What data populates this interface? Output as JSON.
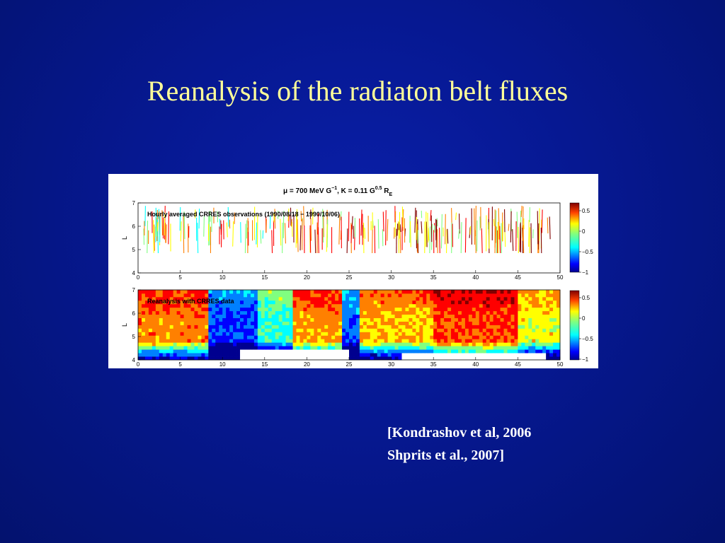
{
  "slide": {
    "title": "Reanalysis of the radiaton belt fluxes",
    "citation": [
      "[Kondrashov et al, 2006",
      "Shprits et al., 2007]"
    ]
  },
  "figure": {
    "header": {
      "mu_text": "μ = 700 MeV G",
      "mu_exp": "−1",
      "k_text": ", K = 0.11 G",
      "k_exp": "0.5",
      "r_text": " R",
      "r_sub": "E"
    },
    "panels": [
      {
        "label": "Hourly averaged CRRES observations (1990/08/18 − 1990/10/06)",
        "ylabel": "L",
        "yticks": [
          "4",
          "5",
          "6",
          "7"
        ],
        "xticks": [
          "0",
          "5",
          "10",
          "15",
          "20",
          "25",
          "30",
          "35",
          "40",
          "45",
          "50"
        ],
        "colorbar_ticks": [
          "0.5",
          "0",
          "−0.5",
          "−1"
        ]
      },
      {
        "label": "Reanalysis with CRRES data",
        "ylabel": "L",
        "yticks": [
          "4",
          "5",
          "6",
          "7"
        ],
        "xticks": [
          "0",
          "5",
          "10",
          "15",
          "20",
          "25",
          "30",
          "35",
          "40",
          "45",
          "50"
        ],
        "colorbar_ticks": [
          "0.5",
          "0",
          "−0.5",
          "−1"
        ]
      }
    ],
    "colormap": [
      "#00008f",
      "#0000ff",
      "#0080ff",
      "#00ffff",
      "#80ff80",
      "#ffff00",
      "#ff8000",
      "#ff0000",
      "#800000"
    ]
  }
}
